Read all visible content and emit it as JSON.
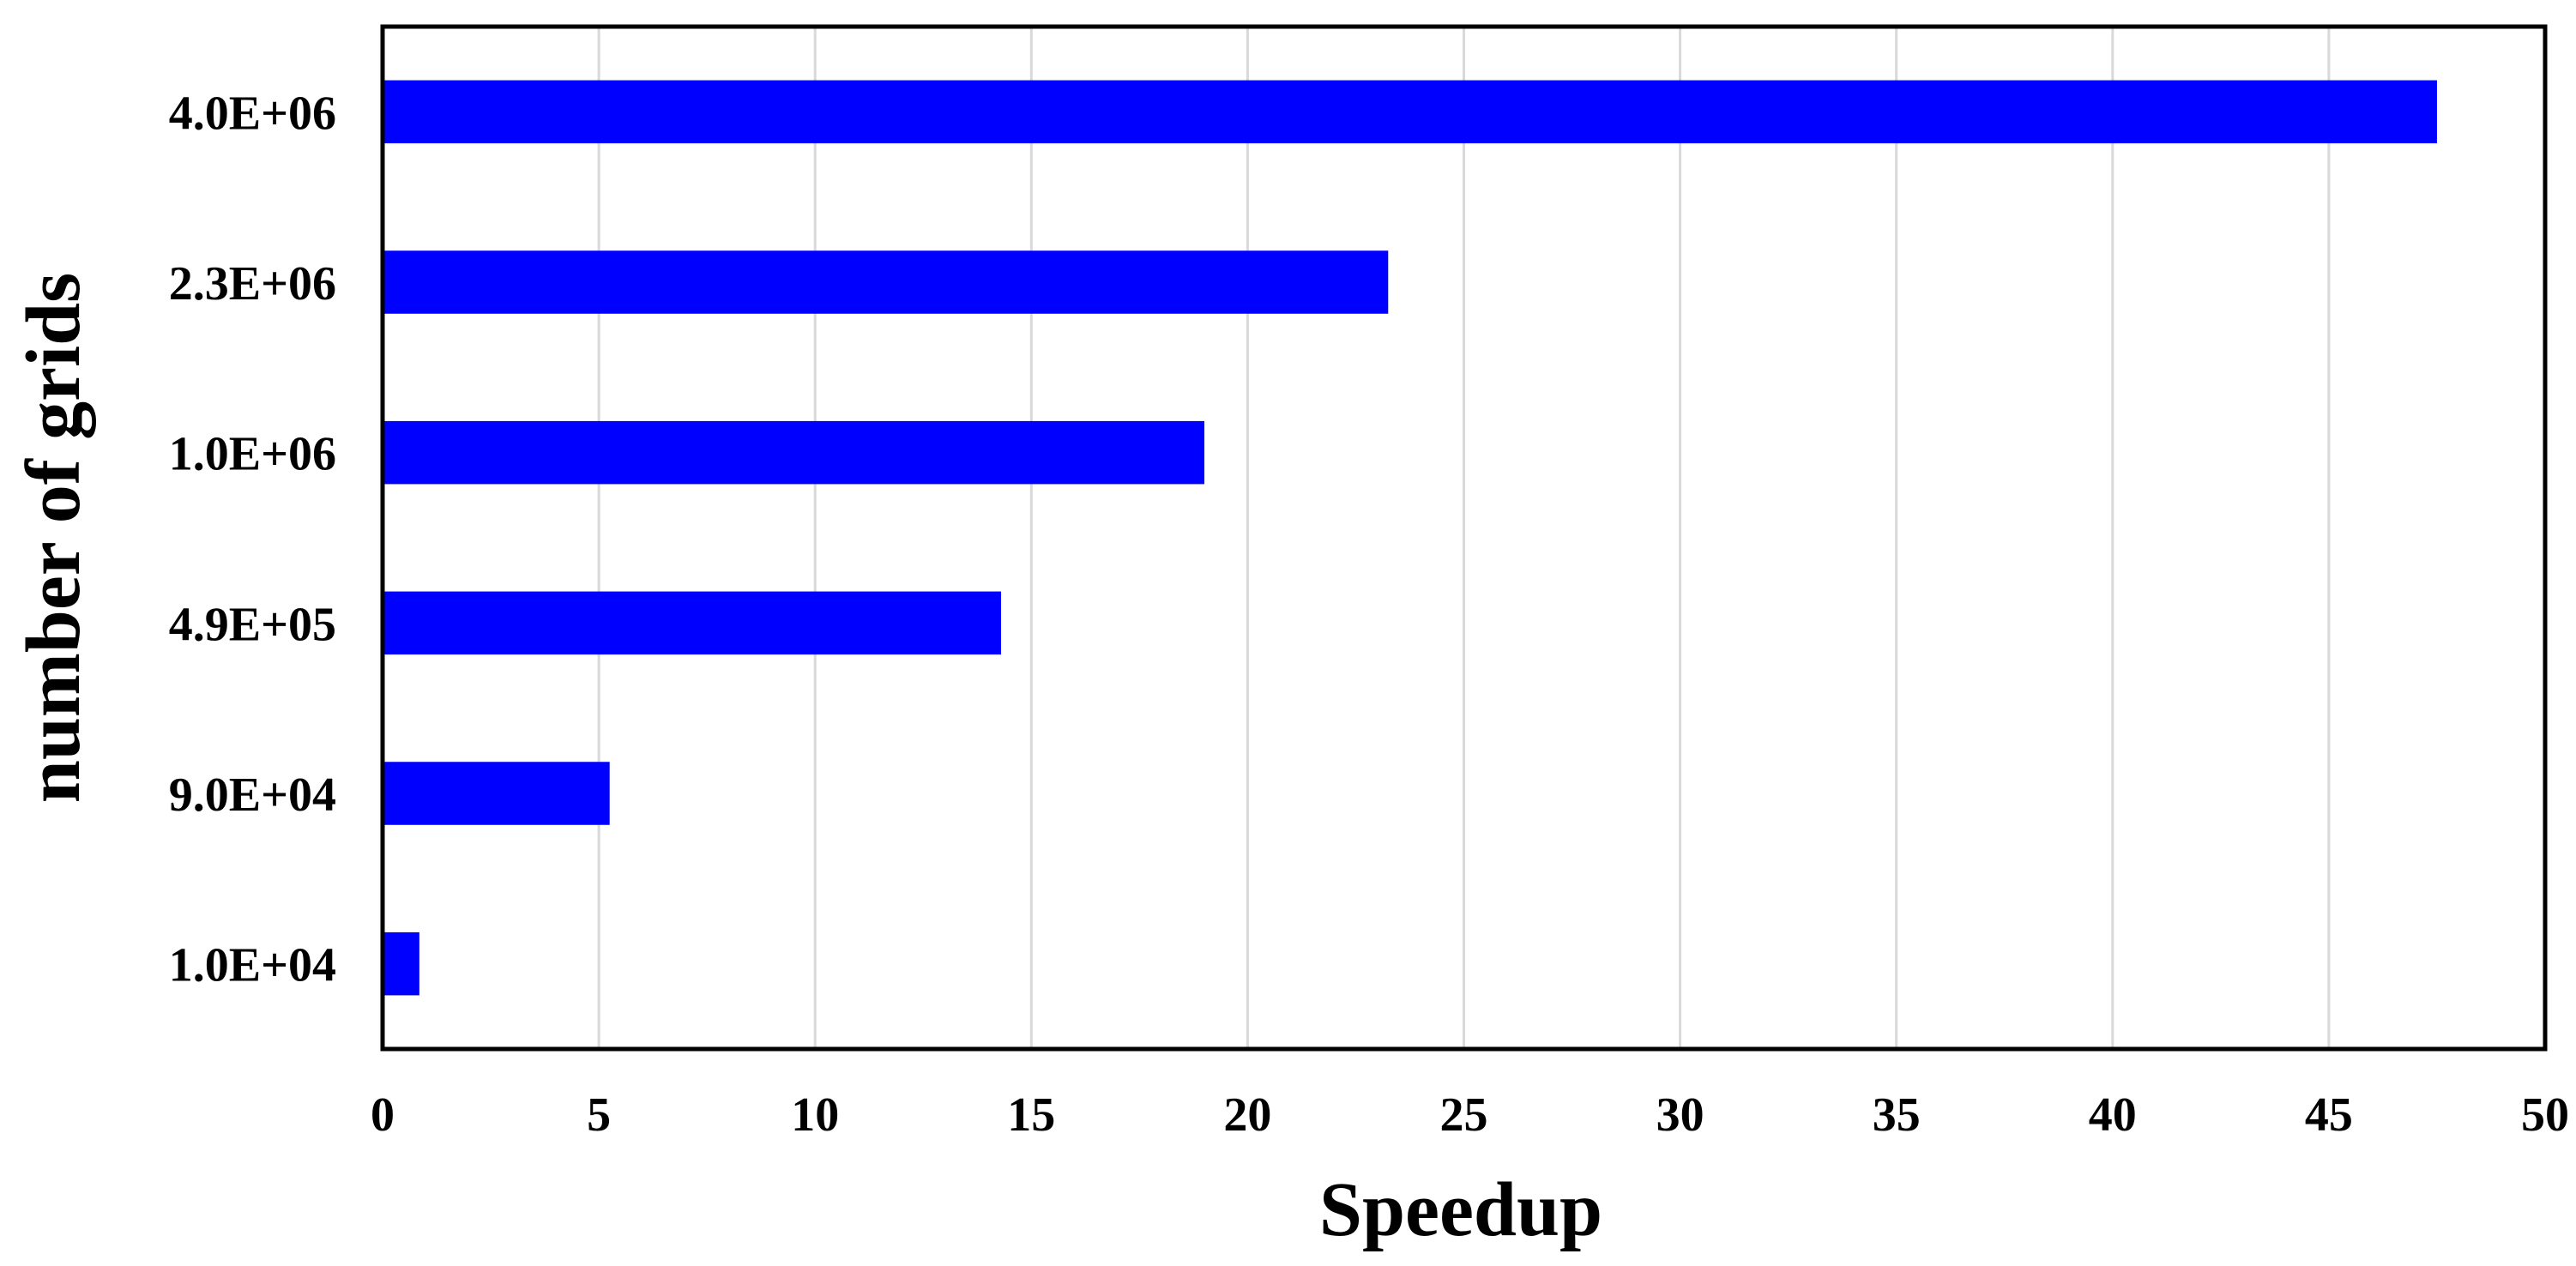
{
  "chart_data": {
    "type": "bar",
    "orientation": "horizontal",
    "categories": [
      "1.0E+04",
      "9.0E+04",
      "4.9E+05",
      "1.0E+06",
      "2.3E+06",
      "4.0E+06"
    ],
    "values": [
      0.85,
      5.25,
      14.3,
      19.0,
      23.25,
      47.5
    ],
    "title": "",
    "xlabel": "Speedup",
    "ylabel": "number of grids",
    "xlim": [
      0,
      50
    ],
    "xticks": [
      "0",
      "5",
      "10",
      "15",
      "20",
      "25",
      "30",
      "35",
      "40",
      "45",
      "50"
    ],
    "grid": "vertical",
    "legend": "none",
    "colors": {
      "bar": "#0000ff",
      "grid": "#d9d9d9",
      "frame": "#000000"
    }
  }
}
